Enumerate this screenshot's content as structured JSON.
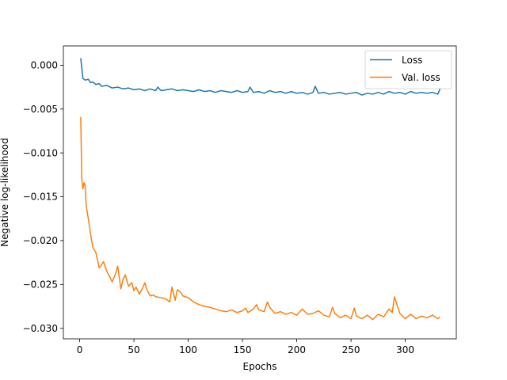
{
  "chart_data": {
    "type": "line",
    "title": "",
    "xlabel": "Epochs",
    "ylabel": "Negative log-likelihood",
    "xlim": [
      -15,
      347
    ],
    "ylim": [
      -0.0312,
      0.0022
    ],
    "xticks": [
      0,
      50,
      100,
      150,
      200,
      250,
      300
    ],
    "xtick_labels": [
      "0",
      "50",
      "100",
      "150",
      "200",
      "250",
      "300"
    ],
    "yticks": [
      0.0,
      -0.005,
      -0.01,
      -0.015,
      -0.02,
      -0.025,
      -0.03
    ],
    "ytick_labels": [
      "0.000",
      "−0.005",
      "−0.010",
      "−0.015",
      "−0.020",
      "−0.025",
      "−0.030"
    ],
    "grid": false,
    "legend": {
      "position": "top-right",
      "entries": [
        "Loss",
        "Val. loss"
      ]
    },
    "series": [
      {
        "name": "Loss",
        "color": "#1f77b4",
        "x": [
          1,
          3,
          5,
          8,
          10,
          12,
          15,
          18,
          20,
          25,
          30,
          35,
          40,
          45,
          50,
          55,
          60,
          65,
          70,
          72,
          75,
          80,
          85,
          90,
          95,
          100,
          105,
          110,
          115,
          120,
          125,
          130,
          135,
          140,
          145,
          150,
          155,
          157,
          160,
          165,
          170,
          175,
          180,
          185,
          190,
          195,
          200,
          205,
          210,
          215,
          217,
          220,
          225,
          230,
          235,
          240,
          245,
          250,
          255,
          260,
          265,
          270,
          275,
          280,
          285,
          290,
          295,
          300,
          305,
          310,
          315,
          320,
          325,
          330,
          332
        ],
        "y": [
          0.0008,
          -0.0015,
          -0.0017,
          -0.0016,
          -0.002,
          -0.0019,
          -0.0022,
          -0.0021,
          -0.0024,
          -0.0023,
          -0.0026,
          -0.0025,
          -0.0027,
          -0.0026,
          -0.0028,
          -0.0027,
          -0.0029,
          -0.0027,
          -0.0029,
          -0.0025,
          -0.0029,
          -0.0028,
          -0.0027,
          -0.0029,
          -0.0028,
          -0.0029,
          -0.003,
          -0.0028,
          -0.003,
          -0.0029,
          -0.0031,
          -0.0029,
          -0.003,
          -0.0031,
          -0.0029,
          -0.0031,
          -0.003,
          -0.0025,
          -0.0031,
          -0.003,
          -0.0032,
          -0.0029,
          -0.0031,
          -0.003,
          -0.0032,
          -0.003,
          -0.0032,
          -0.0031,
          -0.0033,
          -0.0031,
          -0.0024,
          -0.0032,
          -0.0031,
          -0.0033,
          -0.0032,
          -0.0031,
          -0.0033,
          -0.0032,
          -0.0031,
          -0.0034,
          -0.0032,
          -0.0033,
          -0.0031,
          -0.0033,
          -0.003,
          -0.0032,
          -0.0031,
          -0.0033,
          -0.003,
          -0.0032,
          -0.0031,
          -0.0032,
          -0.0031,
          -0.0033,
          -0.0027
        ]
      },
      {
        "name": "Val. loss",
        "color": "#ff7f0e",
        "x": [
          1,
          2,
          3,
          4,
          5,
          6,
          8,
          10,
          12,
          15,
          18,
          20,
          22,
          25,
          28,
          30,
          33,
          35,
          38,
          40,
          42,
          45,
          48,
          50,
          52,
          55,
          58,
          60,
          62,
          65,
          68,
          70,
          75,
          80,
          83,
          85,
          88,
          90,
          93,
          95,
          100,
          105,
          110,
          115,
          120,
          125,
          130,
          135,
          140,
          145,
          150,
          153,
          155,
          160,
          163,
          165,
          170,
          173,
          175,
          180,
          185,
          190,
          195,
          200,
          205,
          210,
          215,
          220,
          225,
          230,
          233,
          235,
          240,
          245,
          250,
          253,
          255,
          260,
          265,
          270,
          275,
          280,
          285,
          288,
          290,
          295,
          300,
          305,
          310,
          315,
          320,
          325,
          330,
          332
        ],
        "y": [
          -0.0059,
          -0.013,
          -0.0141,
          -0.0134,
          -0.0137,
          -0.016,
          -0.0175,
          -0.0192,
          -0.0207,
          -0.0214,
          -0.0231,
          -0.0228,
          -0.0224,
          -0.0235,
          -0.0242,
          -0.0247,
          -0.0238,
          -0.0229,
          -0.0255,
          -0.0244,
          -0.0239,
          -0.0252,
          -0.0248,
          -0.0257,
          -0.0253,
          -0.0261,
          -0.0254,
          -0.0248,
          -0.0256,
          -0.0263,
          -0.0262,
          -0.0264,
          -0.0265,
          -0.0267,
          -0.027,
          -0.0253,
          -0.0268,
          -0.0256,
          -0.0259,
          -0.0263,
          -0.0265,
          -0.027,
          -0.0273,
          -0.0275,
          -0.0276,
          -0.0278,
          -0.028,
          -0.0281,
          -0.0279,
          -0.0282,
          -0.028,
          -0.0277,
          -0.0282,
          -0.0278,
          -0.0273,
          -0.0279,
          -0.0281,
          -0.027,
          -0.0276,
          -0.0283,
          -0.0281,
          -0.0284,
          -0.0282,
          -0.0285,
          -0.0278,
          -0.0284,
          -0.0283,
          -0.028,
          -0.0285,
          -0.0287,
          -0.0276,
          -0.0283,
          -0.0288,
          -0.0285,
          -0.0289,
          -0.0277,
          -0.0286,
          -0.0289,
          -0.0285,
          -0.029,
          -0.0284,
          -0.0287,
          -0.0278,
          -0.0282,
          -0.0264,
          -0.0283,
          -0.0289,
          -0.0284,
          -0.0289,
          -0.0286,
          -0.0288,
          -0.0285,
          -0.0289,
          -0.0287
        ]
      }
    ]
  }
}
